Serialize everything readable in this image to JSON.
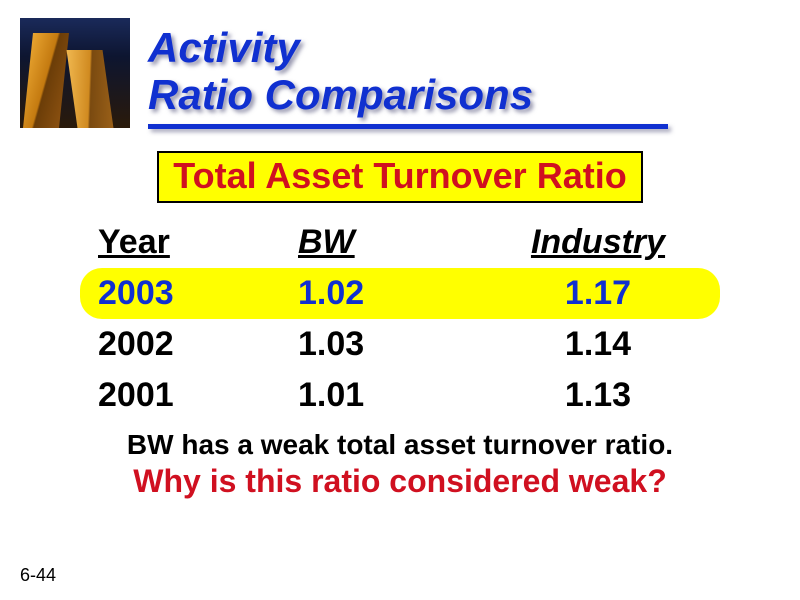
{
  "title": {
    "line1": "Activity",
    "line2": "Ratio Comparisons",
    "color": "#1030d0",
    "fontsize": 42,
    "underline_width": 520
  },
  "subtitle": {
    "text": "Total Asset Turnover Ratio",
    "bg": "#ffff00",
    "color": "#d01020",
    "fontsize": 36
  },
  "table": {
    "columns": [
      "Year",
      "BW",
      "Industry"
    ],
    "rows": [
      {
        "year": "2003",
        "bw": "1.02",
        "industry": "1.17",
        "highlighted": true
      },
      {
        "year": "2002",
        "bw": "1.03",
        "industry": "1.14",
        "highlighted": false
      },
      {
        "year": "2001",
        "bw": "1.01",
        "industry": "1.13",
        "highlighted": false
      }
    ],
    "header_fontsize": 34,
    "row_fontsize": 34,
    "highlight_bg": "#ffff00",
    "highlight_color": "#1030d0",
    "normal_color": "#000000"
  },
  "caption1": "BW has a weak total asset turnover ratio.",
  "caption2": "Why is this ratio considered weak?",
  "caption2_color": "#d01020",
  "page_number": "6-44",
  "background_color": "#ffffff"
}
